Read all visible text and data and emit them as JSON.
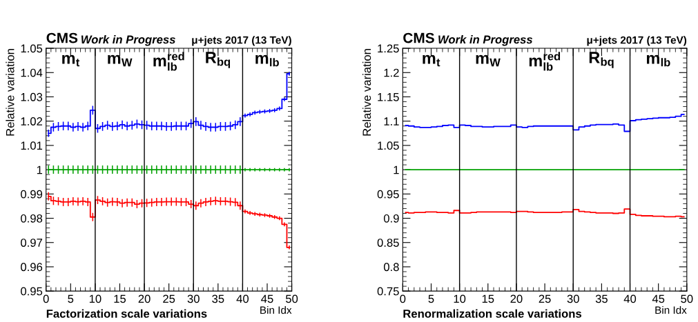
{
  "chart_data": [
    {
      "type": "step",
      "title": "CMS",
      "subtitle": "Work in Progress",
      "xlabel": "Bin Idx",
      "ylabel": "Relative variation",
      "annotations": [
        "μ+jets 2017 (13 TeV)",
        "Factorization scale variations",
        "m$_{t}$",
        "m$_{W}$",
        "m$^{red}$$_{lb}$",
        "R$_{bq}$",
        "m$_{lb}$"
      ],
      "x": [
        0.5,
        1.5,
        2.5,
        3.5,
        4.5,
        5.5,
        6.5,
        7.5,
        8.5,
        9.5,
        10.5,
        11.5,
        12.5,
        13.5,
        14.5,
        15.5,
        16.5,
        17.5,
        18.5,
        19.5,
        20.5,
        21.5,
        22.5,
        23.5,
        24.5,
        25.5,
        26.5,
        27.5,
        28.5,
        29.5,
        30.5,
        31.5,
        32.5,
        33.5,
        34.5,
        35.5,
        36.5,
        37.5,
        38.5,
        39.5,
        40.5,
        41.5,
        42.5,
        43.5,
        44.5,
        45.5,
        46.5,
        47.5,
        48.5,
        49.5
      ],
      "xlim": [
        0,
        50
      ],
      "xticks": [
        0,
        5,
        10,
        15,
        20,
        25,
        30,
        35,
        40,
        45,
        50
      ],
      "ylim": [
        0.95,
        1.05
      ],
      "yticks": [
        0.95,
        0.96,
        0.97,
        0.98,
        0.99,
        1,
        1.01,
        1.02,
        1.03,
        1.04,
        1.05
      ],
      "ref_lines": [
        {
          "axis": "x",
          "value": 10,
          "color": "#000000"
        },
        {
          "axis": "x",
          "value": 20,
          "color": "#000000"
        },
        {
          "axis": "x",
          "value": 30,
          "color": "#000000"
        },
        {
          "axis": "x",
          "value": 40,
          "color": "#000000"
        }
      ],
      "series": [
        {
          "color": "#0000ff",
          "values": [
            1.015,
            1.0175,
            1.0178,
            1.018,
            1.018,
            1.0175,
            1.0178,
            1.0175,
            1.018,
            1.0245,
            1.017,
            1.0178,
            1.0183,
            1.0178,
            1.018,
            1.0185,
            1.018,
            1.0183,
            1.0188,
            1.0185,
            1.0183,
            1.018,
            1.018,
            1.018,
            1.0178,
            1.0178,
            1.018,
            1.018,
            1.018,
            1.019,
            1.0198,
            1.0183,
            1.0178,
            1.0175,
            1.0175,
            1.0178,
            1.0178,
            1.018,
            1.0185,
            1.0198,
            1.0223,
            1.0228,
            1.0235,
            1.0238,
            1.024,
            1.0242,
            1.0245,
            1.0252,
            1.029,
            1.0395
          ],
          "errors": [
            0.0015,
            0.0018,
            0.0018,
            0.0018,
            0.0018,
            0.0018,
            0.0018,
            0.0018,
            0.0018,
            0.0018,
            0.0018,
            0.0018,
            0.0018,
            0.0018,
            0.0018,
            0.0018,
            0.0018,
            0.0018,
            0.0018,
            0.0018,
            0.0018,
            0.0018,
            0.0018,
            0.0018,
            0.0018,
            0.0018,
            0.0018,
            0.0018,
            0.0018,
            0.0018,
            0.0018,
            0.0018,
            0.0018,
            0.0018,
            0.0018,
            0.0018,
            0.0018,
            0.0018,
            0.0018,
            0.0018,
            0.0008,
            0.0008,
            0.0008,
            0.0008,
            0.0008,
            0.0008,
            0.0008,
            0.0008,
            0.0008,
            0.0008
          ]
        },
        {
          "color": "#00a000",
          "values": [
            1,
            1,
            1,
            1,
            1,
            1,
            1,
            1,
            1,
            1,
            1,
            1,
            1,
            1,
            1,
            1,
            1,
            1,
            1,
            1,
            1,
            1,
            1,
            1,
            1,
            1,
            1,
            1,
            1,
            1,
            1,
            1,
            1,
            1,
            1,
            1,
            1,
            1,
            1,
            1,
            1,
            1,
            1,
            1,
            1,
            1,
            1,
            1,
            1,
            1
          ],
          "errors": [
            0.0017,
            0.0017,
            0.0017,
            0.0017,
            0.0017,
            0.0017,
            0.0017,
            0.0017,
            0.0017,
            0.0017,
            0.0017,
            0.0017,
            0.0017,
            0.0017,
            0.0017,
            0.0017,
            0.0017,
            0.0017,
            0.0017,
            0.0017,
            0.0017,
            0.0017,
            0.0017,
            0.0017,
            0.0017,
            0.0017,
            0.0017,
            0.0017,
            0.0017,
            0.0017,
            0.0017,
            0.0017,
            0.0017,
            0.0017,
            0.0017,
            0.0017,
            0.0017,
            0.0017,
            0.0017,
            0.0017,
            0.0007,
            0.0007,
            0.0007,
            0.0007,
            0.0007,
            0.0007,
            0.0007,
            0.0007,
            0.0007,
            0.0007
          ]
        },
        {
          "color": "#ff0000",
          "values": [
            0.989,
            0.9872,
            0.987,
            0.9867,
            0.9867,
            0.987,
            0.9868,
            0.987,
            0.9867,
            0.9805,
            0.9875,
            0.987,
            0.9865,
            0.9868,
            0.9867,
            0.9862,
            0.9865,
            0.9865,
            0.9858,
            0.9862,
            0.9863,
            0.9865,
            0.9867,
            0.9867,
            0.9868,
            0.9868,
            0.9868,
            0.9867,
            0.9867,
            0.9858,
            0.9852,
            0.9862,
            0.9867,
            0.987,
            0.9872,
            0.987,
            0.987,
            0.9868,
            0.9866,
            0.9852,
            0.9828,
            0.9822,
            0.9818,
            0.9815,
            0.9813,
            0.981,
            0.9805,
            0.98,
            0.9775,
            0.968
          ],
          "errors": [
            0.0017,
            0.0017,
            0.0017,
            0.0017,
            0.0017,
            0.0017,
            0.0017,
            0.0017,
            0.0017,
            0.0017,
            0.0017,
            0.0017,
            0.0017,
            0.0017,
            0.0017,
            0.0017,
            0.0017,
            0.0017,
            0.0017,
            0.0017,
            0.0017,
            0.0017,
            0.0017,
            0.0017,
            0.0017,
            0.0017,
            0.0017,
            0.0017,
            0.0017,
            0.0017,
            0.0017,
            0.0017,
            0.0017,
            0.0017,
            0.0017,
            0.0017,
            0.0017,
            0.0017,
            0.0017,
            0.0017,
            0.0008,
            0.0008,
            0.0008,
            0.0008,
            0.0008,
            0.0008,
            0.0008,
            0.0008,
            0.0008,
            0.0008
          ]
        }
      ]
    },
    {
      "type": "step",
      "title": "CMS",
      "subtitle": "Work in Progress",
      "xlabel": "Bin Idx",
      "ylabel": "Relative variation",
      "annotations": [
        "μ+jets 2017 (13 TeV)",
        "Renormalization scale variations",
        "m$_{t}$",
        "m$_{W}$",
        "m$^{red}$$_{lb}$",
        "R$_{bq}$",
        "m$_{lb}$"
      ],
      "x": [
        0.5,
        1.5,
        2.5,
        3.5,
        4.5,
        5.5,
        6.5,
        7.5,
        8.5,
        9.5,
        10.5,
        11.5,
        12.5,
        13.5,
        14.5,
        15.5,
        16.5,
        17.5,
        18.5,
        19.5,
        20.5,
        21.5,
        22.5,
        23.5,
        24.5,
        25.5,
        26.5,
        27.5,
        28.5,
        29.5,
        30.5,
        31.5,
        32.5,
        33.5,
        34.5,
        35.5,
        36.5,
        37.5,
        38.5,
        39.5,
        40.5,
        41.5,
        42.5,
        43.5,
        44.5,
        45.5,
        46.5,
        47.5,
        48.5,
        49.5
      ],
      "xlim": [
        0,
        50
      ],
      "xticks": [
        0,
        5,
        10,
        15,
        20,
        25,
        30,
        35,
        40,
        45,
        50
      ],
      "ylim": [
        0.75,
        1.25
      ],
      "yticks": [
        0.75,
        0.8,
        0.85,
        0.9,
        0.95,
        1,
        1.05,
        1.1,
        1.15,
        1.2,
        1.25
      ],
      "ref_lines": [
        {
          "axis": "x",
          "value": 10,
          "color": "#000000"
        },
        {
          "axis": "x",
          "value": 20,
          "color": "#000000"
        },
        {
          "axis": "x",
          "value": 30,
          "color": "#000000"
        },
        {
          "axis": "x",
          "value": 40,
          "color": "#000000"
        }
      ],
      "series": [
        {
          "color": "#0000ff",
          "values": [
            1.091,
            1.09,
            1.088,
            1.087,
            1.087,
            1.088,
            1.089,
            1.091,
            1.092,
            1.087,
            1.092,
            1.091,
            1.089,
            1.089,
            1.088,
            1.088,
            1.089,
            1.089,
            1.089,
            1.092,
            1.088,
            1.087,
            1.089,
            1.09,
            1.09,
            1.09,
            1.09,
            1.09,
            1.09,
            1.09,
            1.082,
            1.088,
            1.09,
            1.092,
            1.093,
            1.093,
            1.093,
            1.094,
            1.092,
            1.079,
            1.101,
            1.103,
            1.104,
            1.105,
            1.106,
            1.107,
            1.107,
            1.108,
            1.11,
            1.114
          ]
        },
        {
          "color": "#00a000",
          "values": [
            1,
            1,
            1,
            1,
            1,
            1,
            1,
            1,
            1,
            1,
            1,
            1,
            1,
            1,
            1,
            1,
            1,
            1,
            1,
            1,
            1,
            1,
            1,
            1,
            1,
            1,
            1,
            1,
            1,
            1,
            1,
            1,
            1,
            1,
            1,
            1,
            1,
            1,
            1,
            1,
            1,
            1,
            1,
            1,
            1,
            1,
            1,
            1,
            1,
            1
          ]
        },
        {
          "color": "#ff0000",
          "values": [
            0.912,
            0.911,
            0.912,
            0.912,
            0.913,
            0.913,
            0.912,
            0.912,
            0.911,
            0.916,
            0.911,
            0.911,
            0.912,
            0.913,
            0.913,
            0.913,
            0.913,
            0.913,
            0.913,
            0.912,
            0.914,
            0.914,
            0.913,
            0.912,
            0.912,
            0.912,
            0.912,
            0.912,
            0.913,
            0.913,
            0.918,
            0.914,
            0.913,
            0.912,
            0.911,
            0.911,
            0.911,
            0.91,
            0.911,
            0.919,
            0.908,
            0.906,
            0.905,
            0.905,
            0.904,
            0.904,
            0.903,
            0.903,
            0.904,
            0.903
          ]
        }
      ]
    }
  ]
}
